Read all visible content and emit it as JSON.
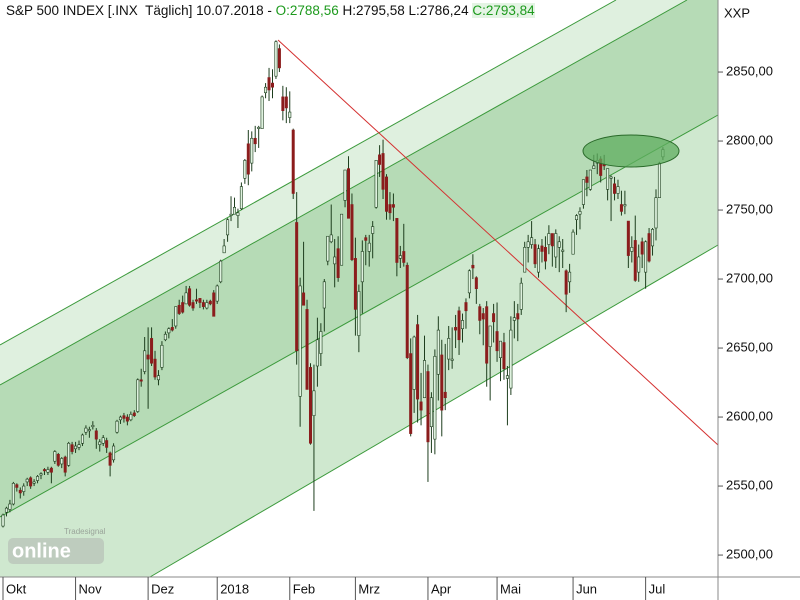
{
  "chart_data": {
    "type": "candlestick",
    "header": {
      "name": "S&P 500 INDEX [.INX  Täglich] 10.07.2018 - ",
      "open_label": "O:2788,56",
      "high_low_label": " H:2795,58 L:2786,24 ",
      "close_label": "C:2793,84"
    },
    "axis_label": "XXP",
    "watermark": {
      "brand": "Tradesignal",
      "text": "online"
    },
    "up_color": "#dff2df",
    "down_color": "#8b1c1c",
    "wick_color": "#1d3d1d",
    "open": [
      2521,
      2531,
      2533,
      2537,
      2551,
      2547,
      2546,
      2553,
      2556,
      2552,
      2554,
      2558,
      2562,
      2560,
      2563,
      2568,
      2573,
      2566,
      2571,
      2565,
      2580,
      2577,
      2578,
      2581,
      2589,
      2590,
      2593,
      2590,
      2580,
      2581,
      2583,
      2574,
      2569,
      2589,
      2598,
      2601,
      2600,
      2598,
      2603,
      2604,
      2627,
      2633,
      2645,
      2657,
      2642,
      2627,
      2636,
      2656,
      2661,
      2665,
      2666,
      2681,
      2683,
      2682,
      2693,
      2683,
      2685,
      2686,
      2683,
      2679,
      2684,
      2690,
      2684,
      2698,
      2719,
      2732,
      2746,
      2747,
      2746,
      2751,
      2773,
      2798,
      2784,
      2802,
      2809,
      2809,
      2835,
      2846,
      2842,
      2847,
      2867,
      2832,
      2832,
      2817,
      2808,
      2741,
      2615,
      2690,
      2678,
      2636,
      2601,
      2637,
      2646,
      2679,
      2713,
      2727,
      2711,
      2722,
      2710,
      2757,
      2780,
      2754,
      2715,
      2659,
      2698,
      2730,
      2720,
      2733,
      2752,
      2790,
      2791,
      2774,
      2754,
      2754,
      2744,
      2715,
      2720,
      2710,
      2646,
      2620,
      2667,
      2611,
      2614,
      2633,
      2593,
      2584,
      2631,
      2645,
      2618,
      2642,
      2641,
      2665,
      2677,
      2664,
      2683,
      2690,
      2710,
      2701,
      2680,
      2675,
      2680,
      2651,
      2675,
      2662,
      2643,
      2654,
      2628,
      2621,
      2670,
      2675,
      2678,
      2705,
      2723,
      2725,
      2725,
      2705,
      2724,
      2723,
      2725,
      2733,
      2716,
      2723,
      2720,
      2706,
      2698,
      2718,
      2743,
      2747,
      2754,
      2774,
      2765,
      2780,
      2784,
      2787,
      2783,
      2765,
      2773,
      2769,
      2762,
      2754,
      2753,
      2742,
      2720,
      2728,
      2705,
      2727,
      2705,
      2733,
      2724,
      2737,
      2759,
      2788.56
    ],
    "high": [
      2530,
      2535,
      2540,
      2553,
      2552,
      2549,
      2552,
      2556,
      2557,
      2555,
      2558,
      2560,
      2563,
      2564,
      2564,
      2576,
      2574,
      2571,
      2572,
      2582,
      2582,
      2582,
      2583,
      2588,
      2594,
      2593,
      2597,
      2592,
      2584,
      2587,
      2585,
      2575,
      2581,
      2598,
      2601,
      2603,
      2602,
      2604,
      2605,
      2628,
      2635,
      2658,
      2665,
      2665,
      2648,
      2634,
      2655,
      2662,
      2665,
      2671,
      2680,
      2685,
      2688,
      2695,
      2695,
      2685,
      2693,
      2686,
      2685,
      2685,
      2685,
      2692,
      2696,
      2714,
      2729,
      2744,
      2760,
      2759,
      2751,
      2770,
      2787,
      2808,
      2807,
      2811,
      2811,
      2833,
      2842,
      2853,
      2852,
      2873,
      2870,
      2840,
      2839,
      2836,
      2809,
      2763,
      2701,
      2727,
      2685,
      2639,
      2638,
      2672,
      2668,
      2700,
      2731,
      2754,
      2729,
      2731,
      2747,
      2779,
      2789,
      2762,
      2730,
      2696,
      2728,
      2732,
      2732,
      2742,
      2786,
      2797,
      2801,
      2776,
      2763,
      2762,
      2744,
      2724,
      2740,
      2712,
      2657,
      2659,
      2674,
      2632,
      2659,
      2638,
      2618,
      2649,
      2673,
      2656,
      2653,
      2666,
      2665,
      2674,
      2680,
      2675,
      2686,
      2707,
      2718,
      2702,
      2682,
      2679,
      2684,
      2666,
      2682,
      2683,
      2655,
      2661,
      2637,
      2673,
      2684,
      2682,
      2701,
      2727,
      2732,
      2742,
      2729,
      2725,
      2729,
      2731,
      2739,
      2733,
      2736,
      2731,
      2729,
      2707,
      2711,
      2736,
      2747,
      2752,
      2772,
      2779,
      2779,
      2790,
      2791,
      2789,
      2790,
      2780,
      2775,
      2774,
      2772,
      2764,
      2764,
      2742,
      2731,
      2746,
      2725,
      2730,
      2728,
      2737,
      2737,
      2765,
      2785,
      2795.58
    ],
    "low": [
      2520,
      2528,
      2531,
      2536,
      2546,
      2541,
      2543,
      2550,
      2548,
      2550,
      2552,
      2555,
      2558,
      2558,
      2552,
      2566,
      2564,
      2563,
      2557,
      2564,
      2573,
      2574,
      2576,
      2579,
      2587,
      2585,
      2591,
      2577,
      2575,
      2579,
      2574,
      2557,
      2567,
      2588,
      2595,
      2596,
      2594,
      2597,
      2600,
      2603,
      2622,
      2631,
      2606,
      2637,
      2627,
      2623,
      2634,
      2655,
      2657,
      2662,
      2664,
      2674,
      2675,
      2682,
      2680,
      2677,
      2682,
      2679,
      2678,
      2678,
      2681,
      2673,
      2682,
      2697,
      2719,
      2727,
      2742,
      2747,
      2737,
      2750,
      2769,
      2768,
      2778,
      2792,
      2795,
      2809,
      2831,
      2829,
      2831,
      2845,
      2850,
      2815,
      2813,
      2813,
      2758,
      2638,
      2593,
      2681,
      2620,
      2580,
      2532,
      2622,
      2637,
      2662,
      2710,
      2726,
      2694,
      2698,
      2710,
      2752,
      2744,
      2713,
      2659,
      2647,
      2675,
      2710,
      2709,
      2715,
      2751,
      2774,
      2758,
      2743,
      2743,
      2742,
      2702,
      2708,
      2709,
      2642,
      2586,
      2603,
      2596,
      2594,
      2614,
      2553,
      2574,
      2573,
      2612,
      2586,
      2605,
      2634,
      2635,
      2650,
      2645,
      2654,
      2664,
      2686,
      2700,
      2682,
      2660,
      2652,
      2622,
      2612,
      2654,
      2640,
      2626,
      2627,
      2594,
      2616,
      2657,
      2655,
      2674,
      2705,
      2712,
      2722,
      2708,
      2701,
      2712,
      2707,
      2718,
      2709,
      2708,
      2705,
      2708,
      2676,
      2690,
      2718,
      2732,
      2736,
      2751,
      2760,
      2764,
      2780,
      2776,
      2770,
      2779,
      2757,
      2742,
      2757,
      2758,
      2746,
      2747,
      2708,
      2712,
      2698,
      2698,
      2708,
      2693,
      2712,
      2717,
      2728,
      2759,
      2786.24
    ],
    "close": [
      2529,
      2534,
      2537,
      2552,
      2549,
      2545,
      2550,
      2555,
      2550,
      2553,
      2557,
      2559,
      2561,
      2562,
      2560,
      2575,
      2565,
      2570,
      2560,
      2581,
      2575,
      2579,
      2580,
      2587,
      2592,
      2591,
      2594,
      2584,
      2582,
      2585,
      2578,
      2565,
      2579,
      2597,
      2600,
      2599,
      2597,
      2602,
      2601,
      2627,
      2626,
      2648,
      2642,
      2639,
      2629,
      2630,
      2652,
      2660,
      2664,
      2663,
      2680,
      2675,
      2676,
      2690,
      2681,
      2679,
      2684,
      2683,
      2680,
      2683,
      2682,
      2673,
      2695,
      2713,
      2724,
      2743,
      2747,
      2752,
      2748,
      2767,
      2786,
      2776,
      2802,
      2798,
      2810,
      2832,
      2839,
      2837,
      2839,
      2872,
      2853,
      2822,
      2824,
      2821,
      2762,
      2648,
      2695,
      2681,
      2620,
      2581,
      2619,
      2656,
      2662,
      2698,
      2731,
      2732,
      2716,
      2701,
      2747,
      2779,
      2744,
      2714,
      2678,
      2691,
      2720,
      2728,
      2726,
      2738,
      2786,
      2783,
      2765,
      2749,
      2748,
      2752,
      2712,
      2717,
      2712,
      2643,
      2588,
      2658,
      2613,
      2605,
      2641,
      2582,
      2614,
      2644,
      2663,
      2605,
      2614,
      2657,
      2642,
      2663,
      2656,
      2670,
      2677,
      2706,
      2708,
      2693,
      2670,
      2671,
      2639,
      2666,
      2669,
      2648,
      2655,
      2635,
      2630,
      2663,
      2672,
      2671,
      2697,
      2723,
      2727,
      2730,
      2711,
      2722,
      2720,
      2713,
      2733,
      2724,
      2733,
      2727,
      2721,
      2689,
      2705,
      2734,
      2746,
      2749,
      2772,
      2770,
      2779,
      2782,
      2786,
      2775,
      2782,
      2780,
      2774,
      2762,
      2767,
      2749,
      2754,
      2717,
      2723,
      2699,
      2716,
      2718,
      2727,
      2713,
      2736,
      2759,
      2784,
      2793.84
    ],
    "xlim": [
      -0.87,
      206.95
    ],
    "xticks": [
      {
        "value": 0,
        "label": "Okt"
      },
      {
        "value": 21,
        "label": "Nov"
      },
      {
        "value": 42,
        "label": "Dez"
      },
      {
        "value": 62,
        "label": "2018"
      },
      {
        "value": 83,
        "label": "Feb"
      },
      {
        "value": 102,
        "label": "Mrz"
      },
      {
        "value": 123,
        "label": "Apr"
      },
      {
        "value": 143,
        "label": "Mai"
      },
      {
        "value": 165,
        "label": "Jun"
      },
      {
        "value": 186,
        "label": "Jul"
      }
    ],
    "ylim": [
      2484.1,
      2902.2
    ],
    "yticks": [
      {
        "value": 2500,
        "label": "2500,00"
      },
      {
        "value": 2550,
        "label": "2550,00"
      },
      {
        "value": 2600,
        "label": "2600,00"
      },
      {
        "value": 2650,
        "label": "2650,00"
      },
      {
        "value": 2700,
        "label": "2700,00"
      },
      {
        "value": 2750,
        "label": "2750,00"
      },
      {
        "value": 2800,
        "label": "2800,00"
      },
      {
        "value": 2850,
        "label": "2850,00"
      }
    ]
  }
}
